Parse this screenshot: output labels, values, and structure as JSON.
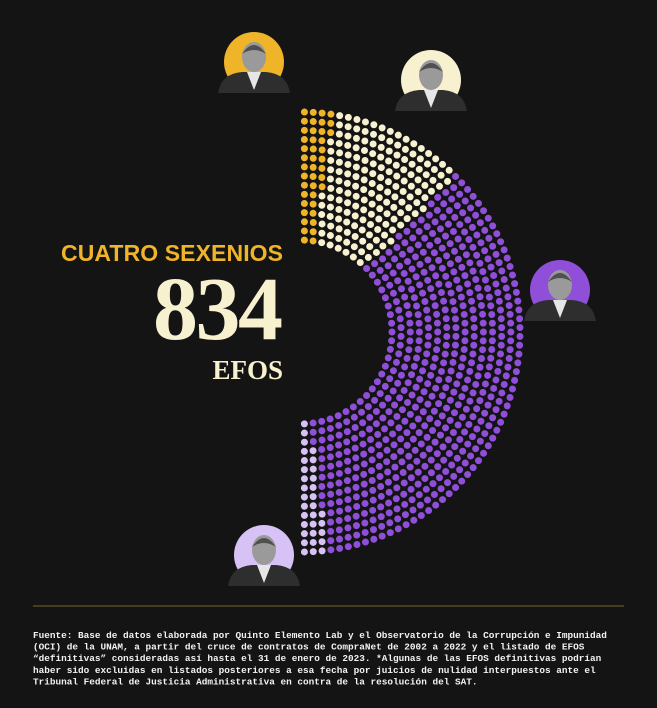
{
  "chart_data": {
    "type": "parliament",
    "title": "CUATRO SEXENIOS",
    "total": 834,
    "total_label": "EFOS",
    "values": [
      42,
      167,
      593,
      32
    ],
    "colors": [
      "#f0b429",
      "#f7f1d0",
      "#8f4fd8",
      "#d7c2f5"
    ]
  },
  "footer": {
    "lines": [
      "Fuente: Base de datos elaborada por Quinto Elemento Lab y el Observatorio de la Corrupción e Impunidad",
      "(OCI) de la UNAM, a partir del cruce de contratos de CompraNet de 2002 a 2022 y el listado de EFOS",
      "“definitivas” consideradas así hasta el 31 de enero de 2023. *Algunas de las EFOS definitivas podrían",
      "haber sido excluidas en listados posteriores a esa fecha por juicios de nulidad interpuestos ante el",
      "Tribunal Federal de Justicia Administrativa en contra de la resolución del SAT."
    ]
  }
}
